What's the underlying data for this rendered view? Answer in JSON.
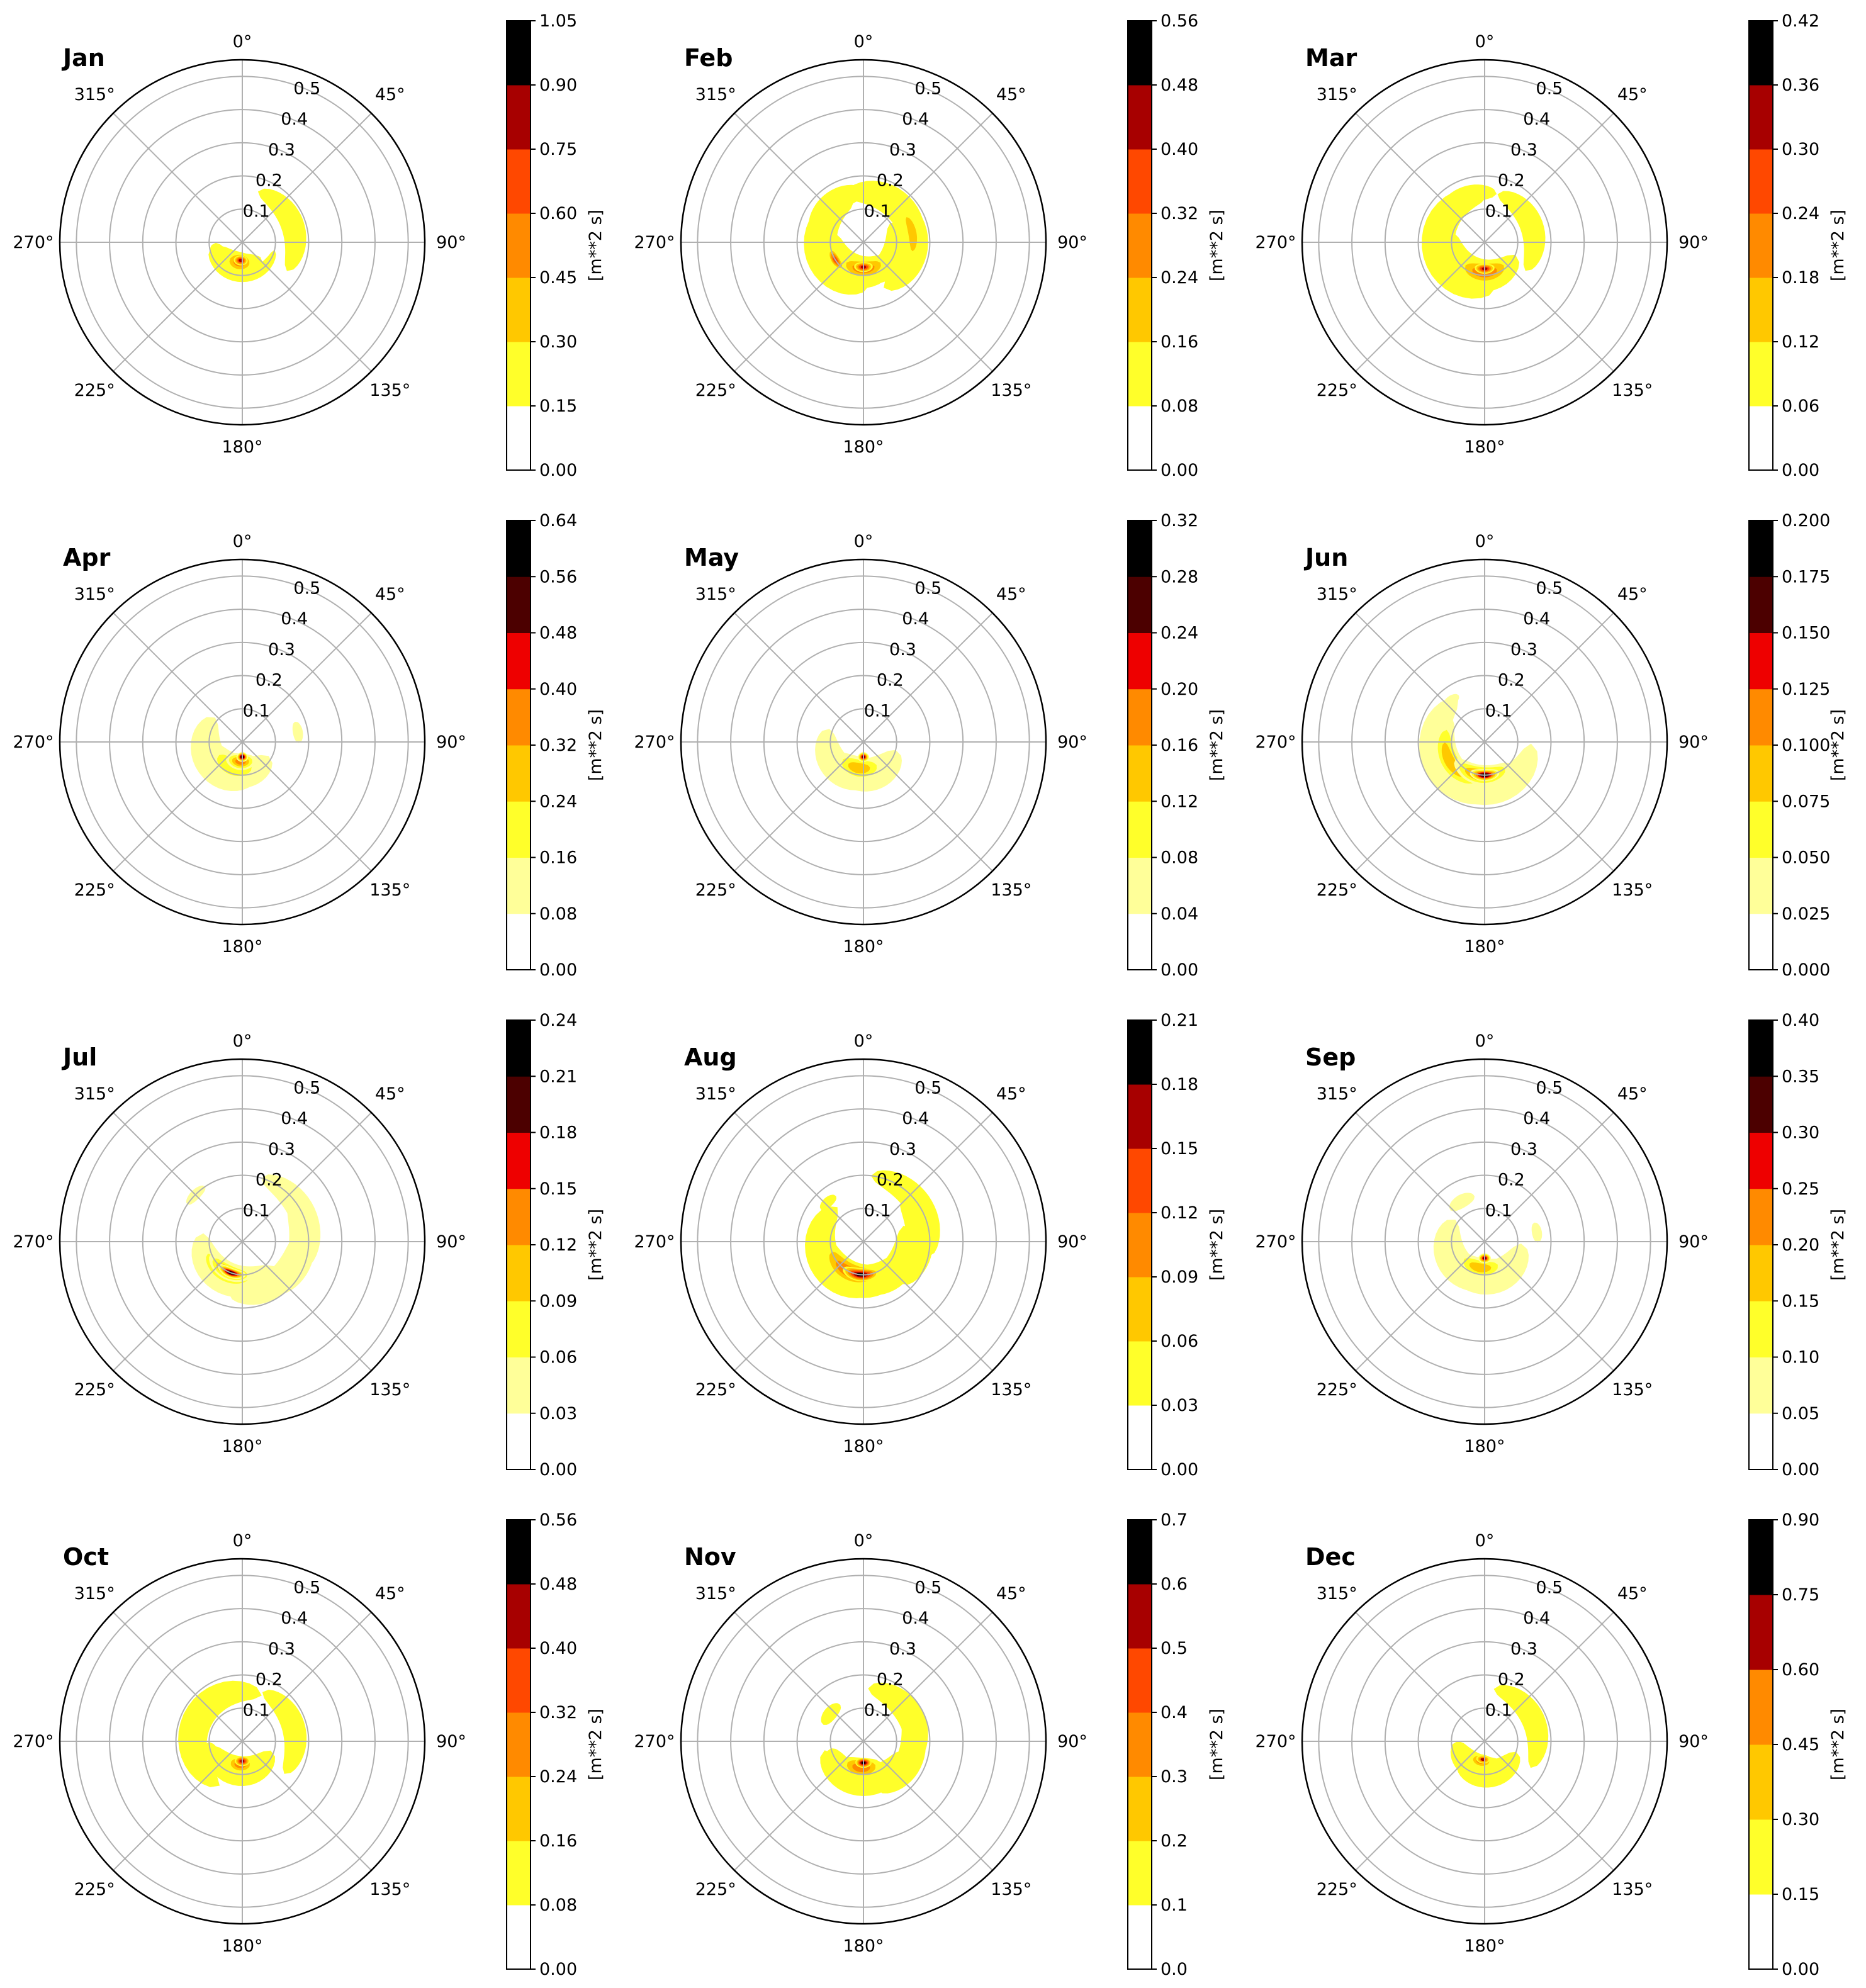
{
  "chart_data": {
    "type": "polar-contour",
    "layout": "4 rows x 3 columns",
    "angle_ticks": [
      "0°",
      "45°",
      "90°",
      "135°",
      "180°",
      "225°",
      "270°",
      "315°"
    ],
    "radial_ticks": [
      "0.1",
      "0.2",
      "0.3",
      "0.4",
      "0.5"
    ],
    "rmax": 0.55,
    "colorbar_label": "[m**2 s]",
    "palette": [
      "#ffffff",
      "#ffff2a",
      "#ffc800",
      "#ff8a00",
      "#ff4800",
      "#ee0000",
      "#a70000",
      "#4c0000",
      "#000000"
    ],
    "panels": [
      {
        "month": "Jan",
        "levels": [
          "0.00",
          "0.15",
          "0.30",
          "0.45",
          "0.60",
          "0.75",
          "0.90",
          "1.05"
        ],
        "light_first": false,
        "blobs": [
          {
            "theta": 70,
            "r": 0.16,
            "sr": 0.035,
            "st": 24,
            "lev": 1
          },
          {
            "theta": 195,
            "r": 0.07,
            "sr": 0.04,
            "st": 30,
            "lev": 1
          },
          {
            "theta": 225,
            "r": 0.08,
            "sr": 0.03,
            "st": 20,
            "lev": 1
          },
          {
            "theta": 180,
            "r": 0.1,
            "sr": 0.02,
            "st": 35,
            "lev": 1
          },
          {
            "theta": 188,
            "r": 0.06,
            "sr": 0.03,
            "st": 18,
            "lev": 3
          },
          {
            "theta": 185,
            "r": 0.055,
            "sr": 0.015,
            "st": 10,
            "lev": 5
          }
        ]
      },
      {
        "month": "Feb",
        "levels": [
          "0.00",
          "0.08",
          "0.16",
          "0.24",
          "0.32",
          "0.40",
          "0.48",
          "0.56"
        ],
        "light_first": false,
        "blobs": [
          {
            "theta": 45,
            "r": 0.15,
            "sr": 0.045,
            "st": 30,
            "lev": 1
          },
          {
            "theta": 90,
            "r": 0.15,
            "sr": 0.045,
            "st": 30,
            "lev": 1
          },
          {
            "theta": 120,
            "r": 0.1,
            "sr": 0.04,
            "st": 30,
            "lev": 1
          },
          {
            "theta": 260,
            "r": 0.13,
            "sr": 0.05,
            "st": 40,
            "lev": 1
          },
          {
            "theta": 320,
            "r": 0.15,
            "sr": 0.035,
            "st": 20,
            "lev": 1
          },
          {
            "theta": 200,
            "r": 0.09,
            "sr": 0.05,
            "st": 40,
            "lev": 1
          },
          {
            "theta": 80,
            "r": 0.15,
            "sr": 0.02,
            "st": 15,
            "lev": 2
          },
          {
            "theta": 180,
            "r": 0.08,
            "sr": 0.03,
            "st": 25,
            "lev": 3
          },
          {
            "theta": 238,
            "r": 0.1,
            "sr": 0.015,
            "st": 10,
            "lev": 4
          },
          {
            "theta": 180,
            "r": 0.075,
            "sr": 0.015,
            "st": 10,
            "lev": 5
          }
        ]
      },
      {
        "month": "Mar",
        "levels": [
          "0.00",
          "0.06",
          "0.12",
          "0.18",
          "0.24",
          "0.30",
          "0.36",
          "0.42"
        ],
        "light_first": false,
        "blobs": [
          {
            "theta": 70,
            "r": 0.15,
            "sr": 0.035,
            "st": 25,
            "lev": 1
          },
          {
            "theta": 265,
            "r": 0.14,
            "sr": 0.05,
            "st": 45,
            "lev": 1
          },
          {
            "theta": 330,
            "r": 0.15,
            "sr": 0.03,
            "st": 20,
            "lev": 1
          },
          {
            "theta": 200,
            "r": 0.1,
            "sr": 0.05,
            "st": 40,
            "lev": 1
          },
          {
            "theta": 180,
            "r": 0.09,
            "sr": 0.035,
            "st": 25,
            "lev": 3
          },
          {
            "theta": 180,
            "r": 0.08,
            "sr": 0.015,
            "st": 10,
            "lev": 5
          }
        ]
      },
      {
        "month": "Apr",
        "levels": [
          "0.00",
          "0.08",
          "0.16",
          "0.24",
          "0.32",
          "0.40",
          "0.48",
          "0.56",
          "0.64"
        ],
        "light_first": true,
        "blobs": [
          {
            "theta": 235,
            "r": 0.11,
            "sr": 0.05,
            "st": 35,
            "lev": 1
          },
          {
            "theta": 195,
            "r": 0.09,
            "sr": 0.05,
            "st": 35,
            "lev": 1
          },
          {
            "theta": 80,
            "r": 0.17,
            "sr": 0.015,
            "st": 5,
            "lev": 1
          },
          {
            "theta": 200,
            "r": 0.08,
            "sr": 0.04,
            "st": 30,
            "lev": 2
          },
          {
            "theta": 185,
            "r": 0.06,
            "sr": 0.025,
            "st": 20,
            "lev": 4
          },
          {
            "theta": 180,
            "r": 0.045,
            "sr": 0.015,
            "st": 10,
            "lev": 7
          }
        ]
      },
      {
        "month": "May",
        "levels": [
          "0.00",
          "0.04",
          "0.08",
          "0.12",
          "0.16",
          "0.20",
          "0.24",
          "0.28",
          "0.32"
        ],
        "light_first": true,
        "blobs": [
          {
            "theta": 225,
            "r": 0.11,
            "sr": 0.045,
            "st": 30,
            "lev": 1
          },
          {
            "theta": 170,
            "r": 0.1,
            "sr": 0.05,
            "st": 30,
            "lev": 1
          },
          {
            "theta": 190,
            "r": 0.08,
            "sr": 0.035,
            "st": 25,
            "lev": 3
          },
          {
            "theta": 180,
            "r": 0.045,
            "sr": 0.015,
            "st": 10,
            "lev": 6
          }
        ]
      },
      {
        "month": "Jun",
        "levels": [
          "0.000",
          "0.025",
          "0.050",
          "0.075",
          "0.100",
          "0.125",
          "0.150",
          "0.175",
          "0.200"
        ],
        "light_first": true,
        "blobs": [
          {
            "theta": 240,
            "r": 0.15,
            "sr": 0.05,
            "st": 40,
            "lev": 1
          },
          {
            "theta": 180,
            "r": 0.14,
            "sr": 0.05,
            "st": 40,
            "lev": 1
          },
          {
            "theta": 285,
            "r": 0.17,
            "sr": 0.02,
            "st": 8,
            "lev": 1
          },
          {
            "theta": 320,
            "r": 0.16,
            "sr": 0.015,
            "st": 5,
            "lev": 1
          },
          {
            "theta": 240,
            "r": 0.12,
            "sr": 0.035,
            "st": 30,
            "lev": 3
          },
          {
            "theta": 185,
            "r": 0.1,
            "sr": 0.03,
            "st": 25,
            "lev": 4
          },
          {
            "theta": 180,
            "r": 0.1,
            "sr": 0.018,
            "st": 12,
            "lev": 7
          }
        ]
      },
      {
        "month": "Jul",
        "levels": [
          "0.00",
          "0.03",
          "0.06",
          "0.09",
          "0.12",
          "0.15",
          "0.18",
          "0.21",
          "0.24"
        ],
        "light_first": true,
        "blobs": [
          {
            "theta": 65,
            "r": 0.2,
            "sr": 0.04,
            "st": 22,
            "lev": 1
          },
          {
            "theta": 100,
            "r": 0.18,
            "sr": 0.04,
            "st": 22,
            "lev": 1
          },
          {
            "theta": 140,
            "r": 0.16,
            "sr": 0.04,
            "st": 25,
            "lev": 1
          },
          {
            "theta": 205,
            "r": 0.12,
            "sr": 0.05,
            "st": 35,
            "lev": 1
          },
          {
            "theta": 315,
            "r": 0.2,
            "sr": 0.015,
            "st": 5,
            "lev": 1
          },
          {
            "theta": 210,
            "r": 0.11,
            "sr": 0.035,
            "st": 30,
            "lev": 2
          },
          {
            "theta": 205,
            "r": 0.1,
            "sr": 0.025,
            "st": 20,
            "lev": 4
          },
          {
            "theta": 200,
            "r": 0.1,
            "sr": 0.015,
            "st": 12,
            "lev": 7
          }
        ]
      },
      {
        "month": "Aug",
        "levels": [
          "0.00",
          "0.03",
          "0.06",
          "0.09",
          "0.12",
          "0.15",
          "0.18",
          "0.21"
        ],
        "light_first": false,
        "blobs": [
          {
            "theta": 55,
            "r": 0.2,
            "sr": 0.04,
            "st": 22,
            "lev": 1
          },
          {
            "theta": 90,
            "r": 0.17,
            "sr": 0.04,
            "st": 22,
            "lev": 1
          },
          {
            "theta": 130,
            "r": 0.13,
            "sr": 0.045,
            "st": 28,
            "lev": 1
          },
          {
            "theta": 235,
            "r": 0.13,
            "sr": 0.05,
            "st": 40,
            "lev": 1
          },
          {
            "theta": 180,
            "r": 0.12,
            "sr": 0.05,
            "st": 35,
            "lev": 1
          },
          {
            "theta": 318,
            "r": 0.16,
            "sr": 0.015,
            "st": 5,
            "lev": 1
          },
          {
            "theta": 205,
            "r": 0.1,
            "sr": 0.035,
            "st": 30,
            "lev": 3
          },
          {
            "theta": 185,
            "r": 0.1,
            "sr": 0.02,
            "st": 15,
            "lev": 6
          }
        ]
      },
      {
        "month": "Sep",
        "levels": [
          "0.00",
          "0.05",
          "0.10",
          "0.15",
          "0.20",
          "0.25",
          "0.30",
          "0.35",
          "0.40"
        ],
        "light_first": true,
        "blobs": [
          {
            "theta": 230,
            "r": 0.11,
            "sr": 0.05,
            "st": 35,
            "lev": 1
          },
          {
            "theta": 170,
            "r": 0.11,
            "sr": 0.05,
            "st": 35,
            "lev": 1
          },
          {
            "theta": 80,
            "r": 0.16,
            "sr": 0.015,
            "st": 5,
            "lev": 1
          },
          {
            "theta": 330,
            "r": 0.14,
            "sr": 0.02,
            "st": 8,
            "lev": 1
          },
          {
            "theta": 190,
            "r": 0.08,
            "sr": 0.03,
            "st": 25,
            "lev": 3
          },
          {
            "theta": 180,
            "r": 0.05,
            "sr": 0.015,
            "st": 10,
            "lev": 6
          }
        ]
      },
      {
        "month": "Oct",
        "levels": [
          "0.00",
          "0.08",
          "0.16",
          "0.24",
          "0.32",
          "0.40",
          "0.48",
          "0.56"
        ],
        "light_first": false,
        "blobs": [
          {
            "theta": 75,
            "r": 0.16,
            "sr": 0.035,
            "st": 24,
            "lev": 1
          },
          {
            "theta": 295,
            "r": 0.15,
            "sr": 0.045,
            "st": 40,
            "lev": 1
          },
          {
            "theta": 185,
            "r": 0.09,
            "sr": 0.045,
            "st": 35,
            "lev": 1
          },
          {
            "theta": 225,
            "r": 0.1,
            "sr": 0.03,
            "st": 20,
            "lev": 1
          },
          {
            "theta": 185,
            "r": 0.07,
            "sr": 0.025,
            "st": 15,
            "lev": 3
          },
          {
            "theta": 180,
            "r": 0.06,
            "sr": 0.015,
            "st": 10,
            "lev": 5
          }
        ]
      },
      {
        "month": "Nov",
        "levels": [
          "0.0",
          "0.1",
          "0.2",
          "0.3",
          "0.4",
          "0.5",
          "0.6",
          "0.7"
        ],
        "light_first": false,
        "blobs": [
          {
            "theta": 60,
            "r": 0.16,
            "sr": 0.04,
            "st": 25,
            "lev": 1
          },
          {
            "theta": 110,
            "r": 0.15,
            "sr": 0.04,
            "st": 25,
            "lev": 1
          },
          {
            "theta": 180,
            "r": 0.12,
            "sr": 0.045,
            "st": 35,
            "lev": 1
          },
          {
            "theta": 310,
            "r": 0.13,
            "sr": 0.02,
            "st": 8,
            "lev": 1
          },
          {
            "theta": 225,
            "r": 0.1,
            "sr": 0.03,
            "st": 15,
            "lev": 1
          },
          {
            "theta": 185,
            "r": 0.08,
            "sr": 0.03,
            "st": 20,
            "lev": 3
          },
          {
            "theta": 180,
            "r": 0.065,
            "sr": 0.015,
            "st": 10,
            "lev": 6
          }
        ]
      },
      {
        "month": "Dec",
        "levels": [
          "0.00",
          "0.15",
          "0.30",
          "0.45",
          "0.60",
          "0.75",
          "0.90"
        ],
        "light_first": false,
        "blobs": [
          {
            "theta": 65,
            "r": 0.16,
            "sr": 0.035,
            "st": 25,
            "lev": 1
          },
          {
            "theta": 205,
            "r": 0.08,
            "sr": 0.04,
            "st": 30,
            "lev": 1
          },
          {
            "theta": 170,
            "r": 0.1,
            "sr": 0.04,
            "st": 28,
            "lev": 1
          },
          {
            "theta": 190,
            "r": 0.06,
            "sr": 0.02,
            "st": 15,
            "lev": 3
          },
          {
            "theta": 185,
            "r": 0.055,
            "sr": 0.012,
            "st": 10,
            "lev": 4
          }
        ]
      }
    ]
  }
}
